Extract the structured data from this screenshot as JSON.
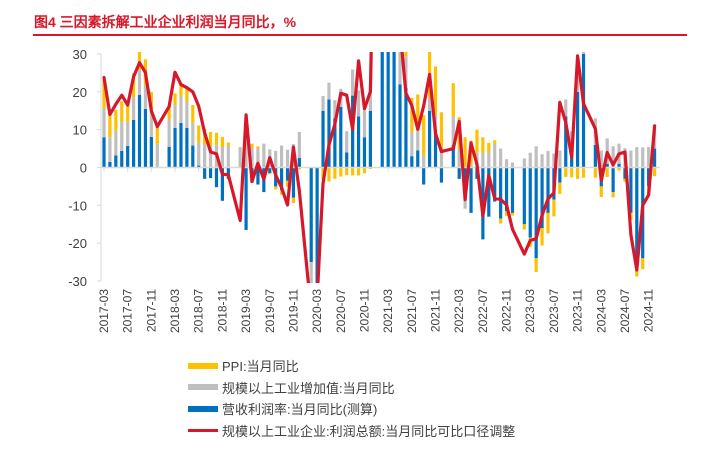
{
  "title": "图4  三因素拆解工业企业利润当月同比，%",
  "colors": {
    "ppi": "#ffc000",
    "ip": "#bfbfbf",
    "margin": "#0070c0",
    "profit": "#d7182a",
    "title": "#d7182a"
  },
  "chart_data": {
    "type": "bar",
    "stacked": true,
    "title": "三因素拆解工业企业利润当月同比，%",
    "xlabel": "",
    "ylabel": "",
    "ylim": [
      -30,
      30
    ],
    "yticks": [
      30,
      20,
      10,
      0,
      -10,
      -20,
      -30
    ],
    "grid": false,
    "legend_position": "bottom",
    "x_tick_labels": [
      "2017-03",
      "2017-07",
      "2017-11",
      "2018-03",
      "2018-07",
      "2018-11",
      "2019-03",
      "2019-07",
      "2019-11",
      "2020-03",
      "2020-07",
      "2020-11",
      "2021-03",
      "2021-07",
      "2021-11",
      "2022-03",
      "2022-07",
      "2022-11",
      "2023-03",
      "2023-07",
      "2023-11",
      "2024-03",
      "2024-07",
      "2024-11"
    ],
    "categories": [
      "2017-03",
      "2017-04",
      "2017-05",
      "2017-06",
      "2017-07",
      "2017-08",
      "2017-09",
      "2017-10",
      "2017-11",
      "2017-12",
      "2018-02",
      "2018-03",
      "2018-04",
      "2018-05",
      "2018-06",
      "2018-07",
      "2018-08",
      "2018-09",
      "2018-10",
      "2018-11",
      "2018-12",
      "2019-02",
      "2019-03",
      "2019-04",
      "2019-05",
      "2019-06",
      "2019-07",
      "2019-08",
      "2019-09",
      "2019-10",
      "2019-11",
      "2019-12",
      "2020-02",
      "2020-03",
      "2020-04",
      "2020-05",
      "2020-06",
      "2020-07",
      "2020-08",
      "2020-09",
      "2020-10",
      "2020-11",
      "2020-12",
      "2021-02",
      "2021-03",
      "2021-04",
      "2021-05",
      "2021-06",
      "2021-07",
      "2021-08",
      "2021-09",
      "2021-10",
      "2021-11",
      "2021-12",
      "2022-02",
      "2022-03",
      "2022-04",
      "2022-05",
      "2022-06",
      "2022-07",
      "2022-08",
      "2022-09",
      "2022-10",
      "2022-11",
      "2022-12",
      "2023-02",
      "2023-03",
      "2023-04",
      "2023-05",
      "2023-06",
      "2023-07",
      "2023-08",
      "2023-09",
      "2023-10",
      "2023-11",
      "2023-12",
      "2024-02",
      "2024-03",
      "2024-04",
      "2024-05",
      "2024-06",
      "2024-07",
      "2024-08",
      "2024-09",
      "2024-10",
      "2024-11",
      "2024-12"
    ],
    "series": [
      {
        "name": "PPI:当月同比",
        "type": "bar",
        "values": [
          7.6,
          6.4,
          5.5,
          5.5,
          5.5,
          6.3,
          6.9,
          6.9,
          5.8,
          4.9,
          3.7,
          3.1,
          3.4,
          4.1,
          4.7,
          4.6,
          4.1,
          3.6,
          3.3,
          2.7,
          0.9,
          0.1,
          0.4,
          0.9,
          0.6,
          0.0,
          -0.3,
          -0.8,
          -1.2,
          -1.6,
          -1.4,
          -0.5,
          -0.4,
          -1.5,
          -3.1,
          -3.7,
          -3.0,
          -2.4,
          -2.0,
          -2.1,
          -2.1,
          -1.5,
          -0.4,
          1.7,
          4.4,
          6.8,
          9.0,
          8.8,
          9.0,
          9.5,
          10.7,
          13.5,
          12.9,
          10.3,
          8.8,
          8.3,
          8.0,
          6.4,
          6.1,
          4.2,
          2.3,
          0.9,
          -1.3,
          -1.3,
          -0.7,
          -1.4,
          -2.5,
          -3.6,
          -4.6,
          -5.4,
          -4.4,
          -3.0,
          -2.5,
          -2.6,
          -3.0,
          -2.7,
          -2.7,
          -2.8,
          -2.5,
          -1.4,
          -0.8,
          -0.8,
          -1.8,
          -2.8,
          -2.9,
          -2.5,
          -2.3
        ]
      },
      {
        "name": "规模以上工业增加值:当月同比",
        "type": "bar",
        "values": [
          7.6,
          6.5,
          6.5,
          7.6,
          6.4,
          6.0,
          6.6,
          6.2,
          6.1,
          6.2,
          7.2,
          6.0,
          7.0,
          6.8,
          6.0,
          6.0,
          6.1,
          5.8,
          5.9,
          5.4,
          5.7,
          5.3,
          8.5,
          5.4,
          5.0,
          6.3,
          4.8,
          4.4,
          5.8,
          4.7,
          6.2,
          6.9,
          -13.5,
          -1.1,
          3.9,
          4.4,
          4.8,
          4.8,
          5.6,
          6.9,
          6.9,
          7.0,
          7.3,
          35.1,
          14.1,
          9.8,
          8.8,
          8.3,
          6.4,
          5.3,
          3.1,
          3.5,
          3.8,
          4.3,
          7.5,
          5.0,
          -2.9,
          0.7,
          3.9,
          3.8,
          4.2,
          6.3,
          5.0,
          2.2,
          1.3,
          2.4,
          3.9,
          5.6,
          3.5,
          4.4,
          3.7,
          4.5,
          4.5,
          4.6,
          6.6,
          6.8,
          7.0,
          4.5,
          6.7,
          5.6,
          5.3,
          5.1,
          4.5,
          5.4,
          5.3,
          5.4,
          6.2
        ]
      },
      {
        "name": "营收利润率:当月同比(测算)",
        "type": "bar",
        "values": [
          8.0,
          1.5,
          3.2,
          4.4,
          5.7,
          12.6,
          19.2,
          15.5,
          8.1,
          0.0,
          5.5,
          10.5,
          11.8,
          10.5,
          5.8,
          0.5,
          -3.0,
          -2.8,
          -5.2,
          -8.8,
          -3.0,
          0.0,
          -16.5,
          -4.0,
          -4.5,
          -6.5,
          -1.5,
          -5.0,
          -6.0,
          -3.5,
          -8.0,
          2.5,
          -25.0,
          -33.0,
          15.0,
          18.0,
          13.0,
          16.0,
          4.0,
          19.0,
          13.5,
          8.0,
          15.0,
          45.0,
          60.0,
          42.0,
          22.0,
          21.0,
          3.0,
          4.5,
          -4.5,
          15.0,
          10.0,
          -4.0,
          6.0,
          -3.0,
          -8.0,
          -12.0,
          -3.0,
          -19.0,
          -13.0,
          -9.0,
          -13.5,
          -11.5,
          -12.0,
          -15.0,
          -18.5,
          -24.0,
          -16.0,
          -12.0,
          -8.5,
          -4.0,
          13.5,
          5.0,
          20.0,
          30.0,
          6.0,
          -5.0,
          1.0,
          -6.5,
          1.0,
          -3.0,
          -12.0,
          -26.0,
          -24.0,
          -5.0,
          5.0
        ]
      },
      {
        "name": "规模以上工业企业:利润总额:当月同比可比口径调整",
        "type": "line",
        "values": [
          23.8,
          14.0,
          16.7,
          19.1,
          16.5,
          24.0,
          27.7,
          25.1,
          14.9,
          10.8,
          16.1,
          25.2,
          21.9,
          21.1,
          20.0,
          16.2,
          9.2,
          4.1,
          3.6,
          -1.8,
          -1.9,
          -14.0,
          13.9,
          -3.7,
          1.1,
          -3.1,
          2.6,
          -2.0,
          -5.3,
          -9.9,
          5.4,
          -6.3,
          -38.3,
          -34.9,
          -4.3,
          6.0,
          11.5,
          19.6,
          19.1,
          10.1,
          28.2,
          15.5,
          20.1,
          178.9,
          92.3,
          57.0,
          36.4,
          19.7,
          16.4,
          10.1,
          16.3,
          24.6,
          9.0,
          4.2,
          5.0,
          12.2,
          -8.5,
          6.5,
          0.8,
          -12.8,
          -2.1,
          -8.2,
          -8.4,
          -9.9,
          -16.3,
          -22.9,
          -19.3,
          -18.8,
          -12.6,
          -8.3,
          -6.7,
          17.2,
          11.9,
          2.7,
          29.5,
          16.9,
          10.2,
          -3.5,
          4.0,
          0.7,
          3.6,
          4.1,
          -17.8,
          -27.1,
          -10.0,
          -7.3,
          11.0
        ]
      }
    ]
  },
  "legend": [
    {
      "label": "PPI:当月同比",
      "kind": "bar",
      "color_key": "ppi"
    },
    {
      "label": "规模以上工业增加值:当月同比",
      "kind": "bar",
      "color_key": "ip"
    },
    {
      "label": "营收利润率:当月同比(测算)",
      "kind": "bar",
      "color_key": "margin"
    },
    {
      "label": "规模以上工业企业:利润总额:当月同比可比口径调整",
      "kind": "line",
      "color_key": "profit"
    }
  ]
}
